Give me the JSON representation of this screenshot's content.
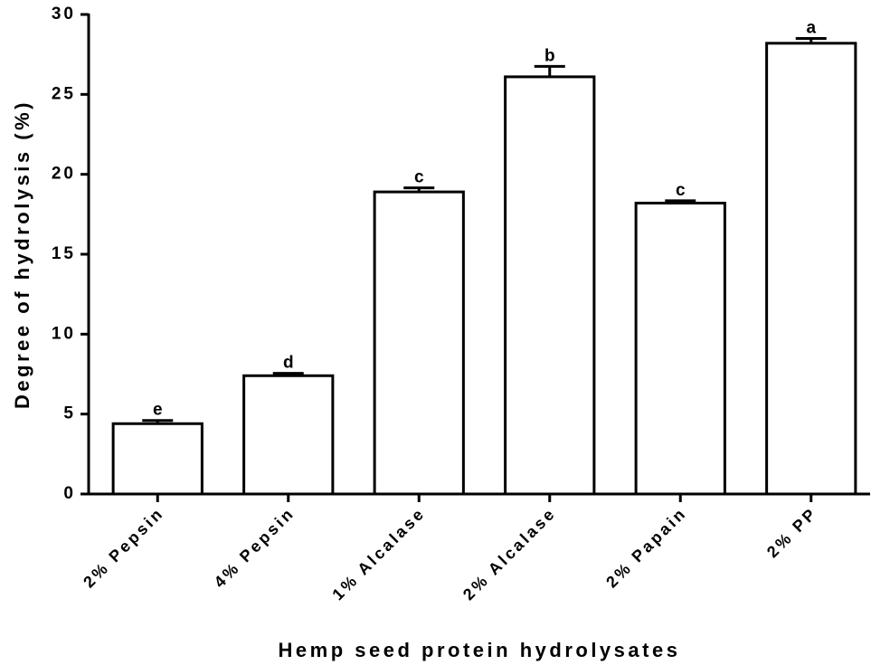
{
  "chart_data": {
    "type": "bar",
    "xlabel": "Hemp seed protein hydrolysates",
    "ylabel": "Degree of hydrolysis (%)",
    "categories": [
      "2% Pepsin",
      "4% Pepsin",
      "1% Alcalase",
      "2% Alcalase",
      "2% Papain",
      "2% PP"
    ],
    "values": [
      4.4,
      7.4,
      18.9,
      26.1,
      18.2,
      28.2
    ],
    "errors": [
      0.2,
      0.15,
      0.25,
      0.65,
      0.15,
      0.3
    ],
    "annotations": [
      "e",
      "d",
      "c",
      "b",
      "c",
      "a"
    ],
    "color": "#ffffff",
    "ylim": [
      0,
      30
    ],
    "yticks": [
      0,
      5,
      10,
      15,
      20,
      25,
      30
    ],
    "grid": false
  }
}
